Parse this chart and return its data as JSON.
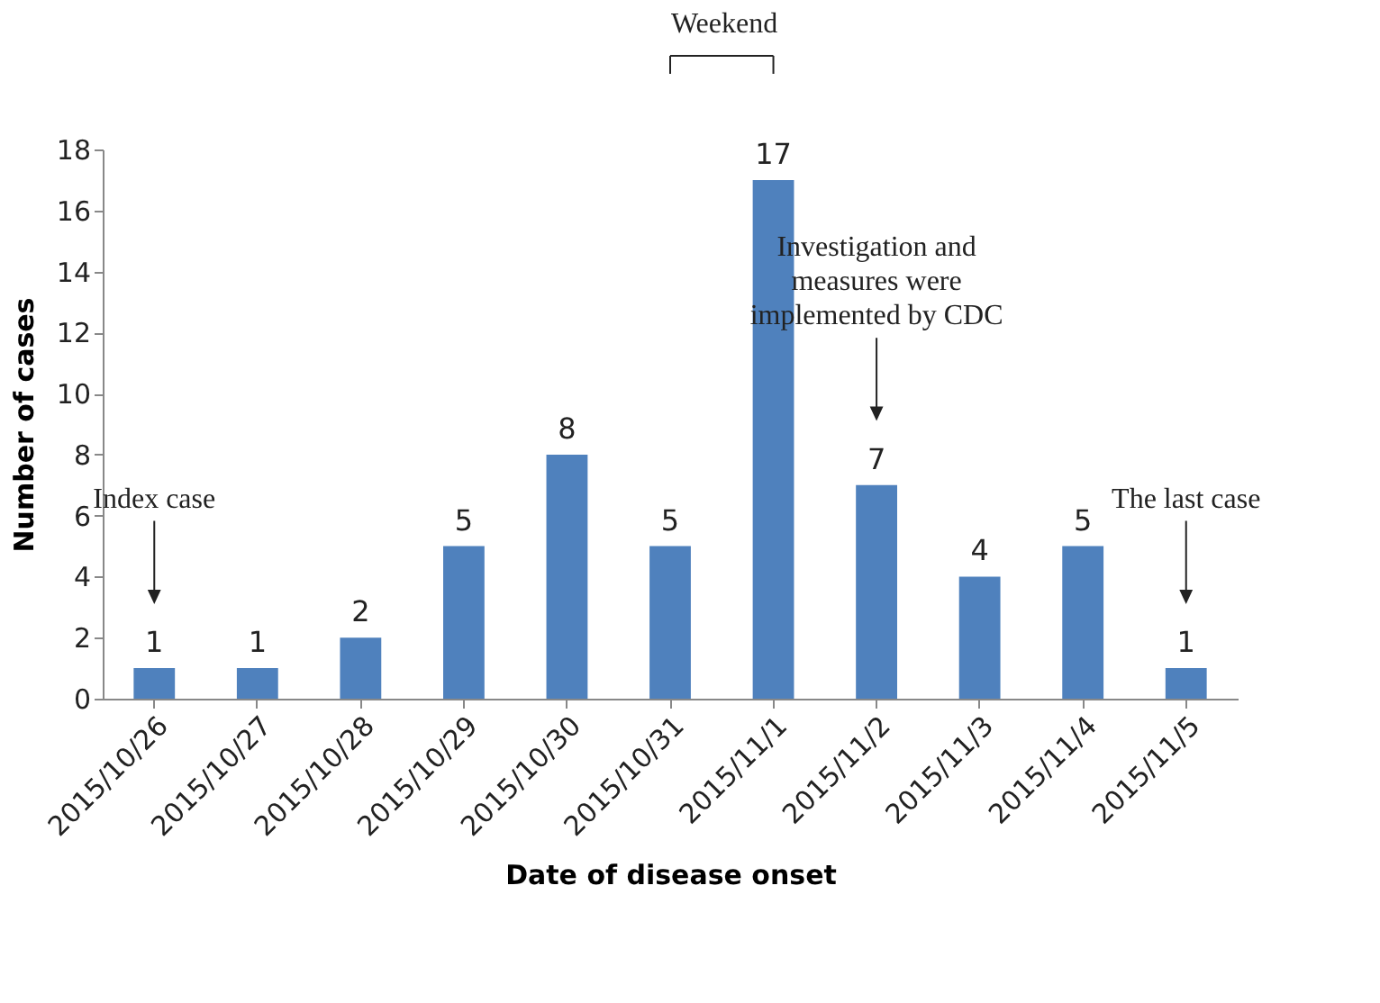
{
  "chart_data": {
    "type": "bar",
    "xlabel": "Date of disease onset",
    "ylabel": "Number of cases",
    "categories": [
      "2015/10/26",
      "2015/10/27",
      "2015/10/28",
      "2015/10/29",
      "2015/10/30",
      "2015/10/31",
      "2015/11/1",
      "2015/11/2",
      "2015/11/3",
      "2015/11/4",
      "2015/11/5"
    ],
    "values": [
      1,
      1,
      2,
      5,
      8,
      5,
      17,
      7,
      4,
      5,
      1
    ],
    "color": "#4f81bd",
    "ylim": [
      0,
      18
    ],
    "yticks": [
      0,
      2,
      4,
      6,
      8,
      10,
      12,
      14,
      16,
      18
    ],
    "grid": false,
    "data_labels": true,
    "annotations": [
      {
        "text": "Index case",
        "x": "2015/10/26"
      },
      {
        "text": "Investigation and measures were implemented by CDC",
        "x": "2015/11/2"
      },
      {
        "text": "The last case",
        "x": "2015/11/5"
      },
      "Weekend"
    ]
  }
}
